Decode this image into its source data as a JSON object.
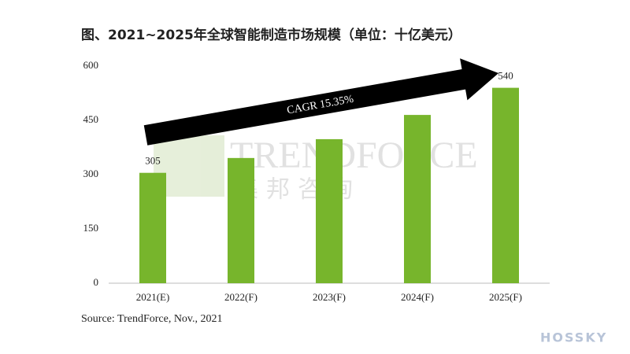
{
  "chart_data": {
    "type": "bar",
    "title": "图、2021~2025年全球智能制造市场规模（单位：十亿美元）",
    "categories": [
      "2021(E)",
      "2022(F)",
      "2023(F)",
      "2024(F)",
      "2025(F)"
    ],
    "values": [
      305,
      346,
      398,
      465,
      540
    ],
    "value_labels": [
      "305",
      null,
      null,
      null,
      "540"
    ],
    "color": "#77b52c",
    "ylim": [
      0,
      600
    ],
    "yticks": [
      0,
      150,
      300,
      450,
      600
    ],
    "grid": false,
    "annotation": "CAGR 15.35%",
    "source": "Source: TrendForce, Nov., 2021",
    "watermark": "TRENDFORCE",
    "watermark_cn": "集邦咨询",
    "logo": "HOSSKY"
  }
}
